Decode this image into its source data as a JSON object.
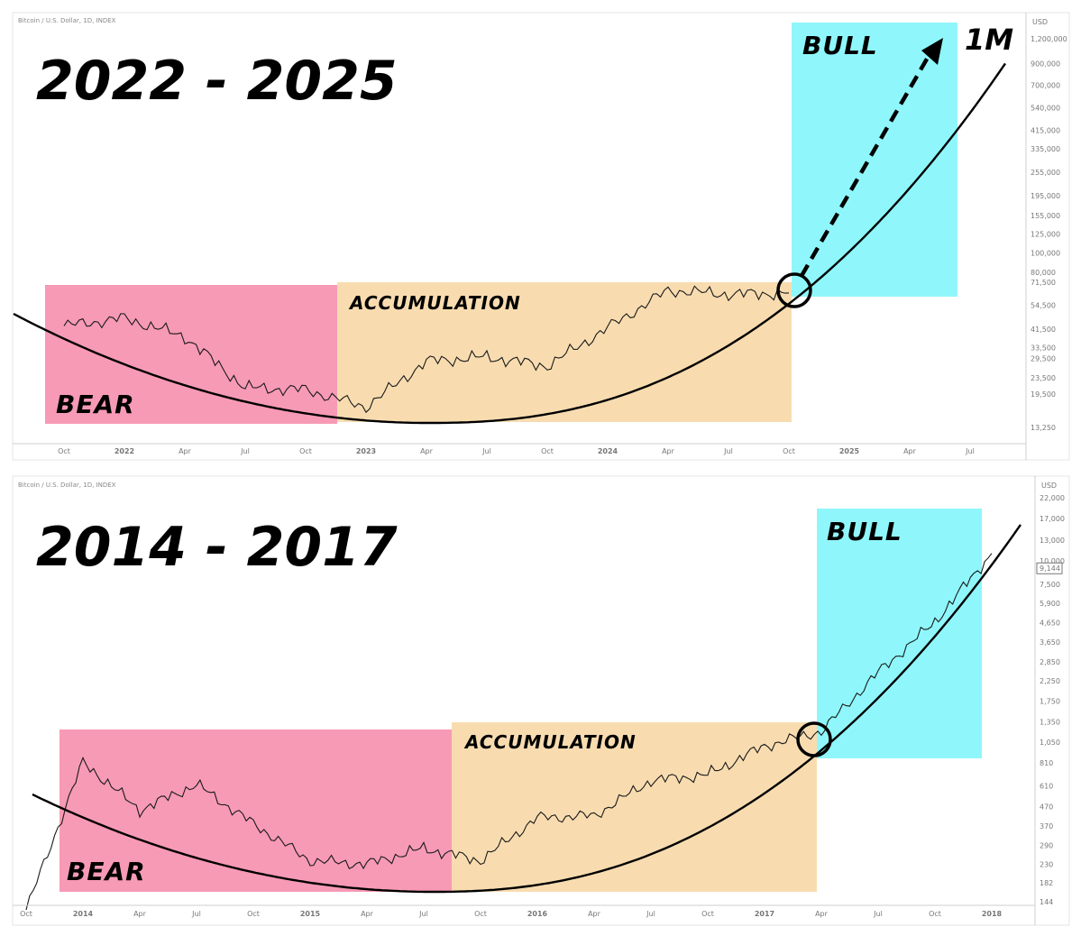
{
  "chart_data": [
    {
      "type": "line",
      "source_label": "Bitcoin / U.S. Dollar, 1D, INDEX",
      "title": "2022 - 2025",
      "scale": "log",
      "currency_label": "USD",
      "y_ticks": [
        "1,200,000",
        "900,000",
        "700,000",
        "540,000",
        "415,000",
        "335,000",
        "255,000",
        "195,000",
        "155,000",
        "125,000",
        "100,000",
        "80,000",
        "71,500",
        "54,500",
        "41,500",
        "33,500",
        "29,500",
        "23,500",
        "19,500",
        "13,250"
      ],
      "x_ticks": [
        "Oct",
        "2022",
        "Apr",
        "Jul",
        "Oct",
        "2023",
        "Apr",
        "Jul",
        "Oct",
        "2024",
        "Apr",
        "Jul",
        "Oct",
        "2025",
        "Apr",
        "Jul"
      ],
      "zones": [
        {
          "label": "BEAR",
          "color": "#f79ab5",
          "x_start": "Sep 2021",
          "x_end": "Dec 2022",
          "y_low": 13250,
          "y_high": 73000
        },
        {
          "label": "ACCUMULATION",
          "color": "#f8dcb0",
          "x_start": "Dec 2022",
          "x_end": "Oct 2024",
          "y_low": 13250,
          "y_high": 73000
        },
        {
          "label": "BULL",
          "color": "#8ff7fb",
          "x_start": "Oct 2024",
          "x_end": "Jul 2025",
          "y_low": 71500,
          "y_high": 1200000
        }
      ],
      "annotations": {
        "target_label": "1M",
        "breakout_marker": "circle",
        "projection": "dashed arrow"
      },
      "series": [
        {
          "values_by_tick": [
            43000,
            47000,
            38000,
            21000,
            20500,
            16800,
            28500,
            30000,
            27000,
            42000,
            65000,
            62000,
            63000
          ]
        }
      ],
      "grid": false,
      "legend": "none"
    },
    {
      "type": "line",
      "source_label": "Bitcoin / U.S. Dollar, 1D, INDEX",
      "title": "2014 - 2017",
      "scale": "log",
      "currency_label": "USD",
      "y_ticks": [
        "22,000",
        "17,000",
        "13,000",
        "10,000",
        "7,500",
        "5,900",
        "4,650",
        "3,650",
        "2,850",
        "2,250",
        "1,750",
        "1,350",
        "1,050",
        "810",
        "610",
        "470",
        "370",
        "290",
        "230",
        "182",
        "144"
      ],
      "last_price": "9,144",
      "x_ticks": [
        "Oct",
        "2014",
        "Apr",
        "Jul",
        "Oct",
        "2015",
        "Apr",
        "Jul",
        "Oct",
        "2016",
        "Apr",
        "Jul",
        "Oct",
        "2017",
        "Apr",
        "Jul",
        "Oct",
        "2018"
      ],
      "zones": [
        {
          "label": "BEAR",
          "color": "#f79ab5",
          "x_start": "Dec 2013",
          "x_end": "Aug 2015",
          "y_low": 160,
          "y_high": 1200
        },
        {
          "label": "ACCUMULATION",
          "color": "#f8dcb0",
          "x_start": "Aug 2015",
          "x_end": "Mar 2017",
          "y_low": 160,
          "y_high": 1350
        },
        {
          "label": "BULL",
          "color": "#8ff7fb",
          "x_start": "Mar 2017",
          "x_end": "Dec 2017",
          "y_low": 900,
          "y_high": 20000
        }
      ],
      "annotations": {
        "breakout_marker": "circle"
      },
      "series": [
        {
          "values_by_tick": [
            130,
            820,
            450,
            620,
            380,
            240,
            230,
            280,
            240,
            410,
            420,
            650,
            700,
            1000,
            1200,
            2500,
            4700,
            11000
          ]
        }
      ],
      "grid": false,
      "legend": "none"
    }
  ]
}
